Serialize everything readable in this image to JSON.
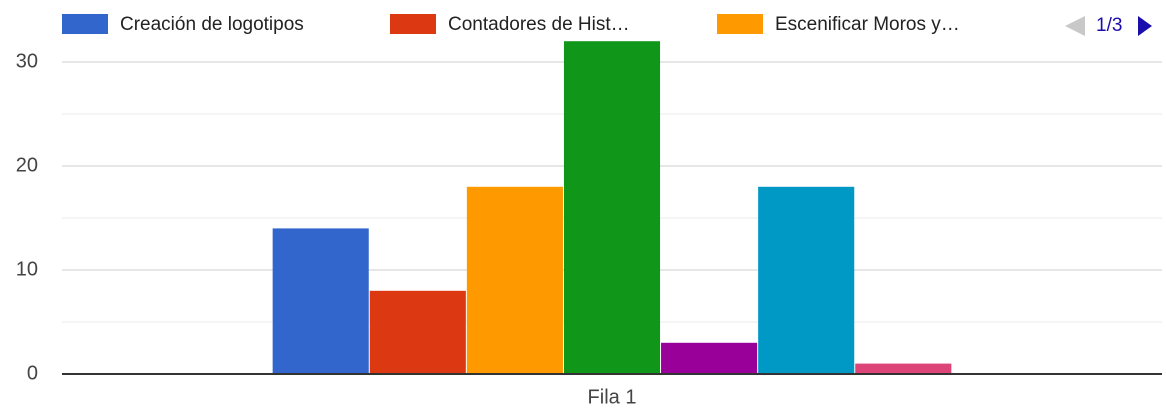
{
  "chart_data": {
    "type": "bar",
    "categories": [
      "Fila 1"
    ],
    "series": [
      {
        "name": "Creación de logotipos",
        "color": "#3366cc",
        "values": [
          14
        ]
      },
      {
        "name": "Contadores de Hist…",
        "color": "#dc3912",
        "values": [
          8
        ]
      },
      {
        "name": "Escenificar Moros y…",
        "color": "#ff9900",
        "values": [
          18
        ]
      },
      {
        "color": "#109618",
        "values": [
          32
        ]
      },
      {
        "color": "#990099",
        "values": [
          3
        ]
      },
      {
        "color": "#0099c6",
        "values": [
          18
        ]
      },
      {
        "color": "#dd4477",
        "values": [
          1
        ]
      }
    ],
    "ylim": [
      0,
      35
    ],
    "yticks": [
      0,
      10,
      20,
      30
    ],
    "minor_yticks": [
      5,
      15,
      25
    ],
    "grid": true,
    "legend": "top",
    "legend_page": "1/3"
  }
}
